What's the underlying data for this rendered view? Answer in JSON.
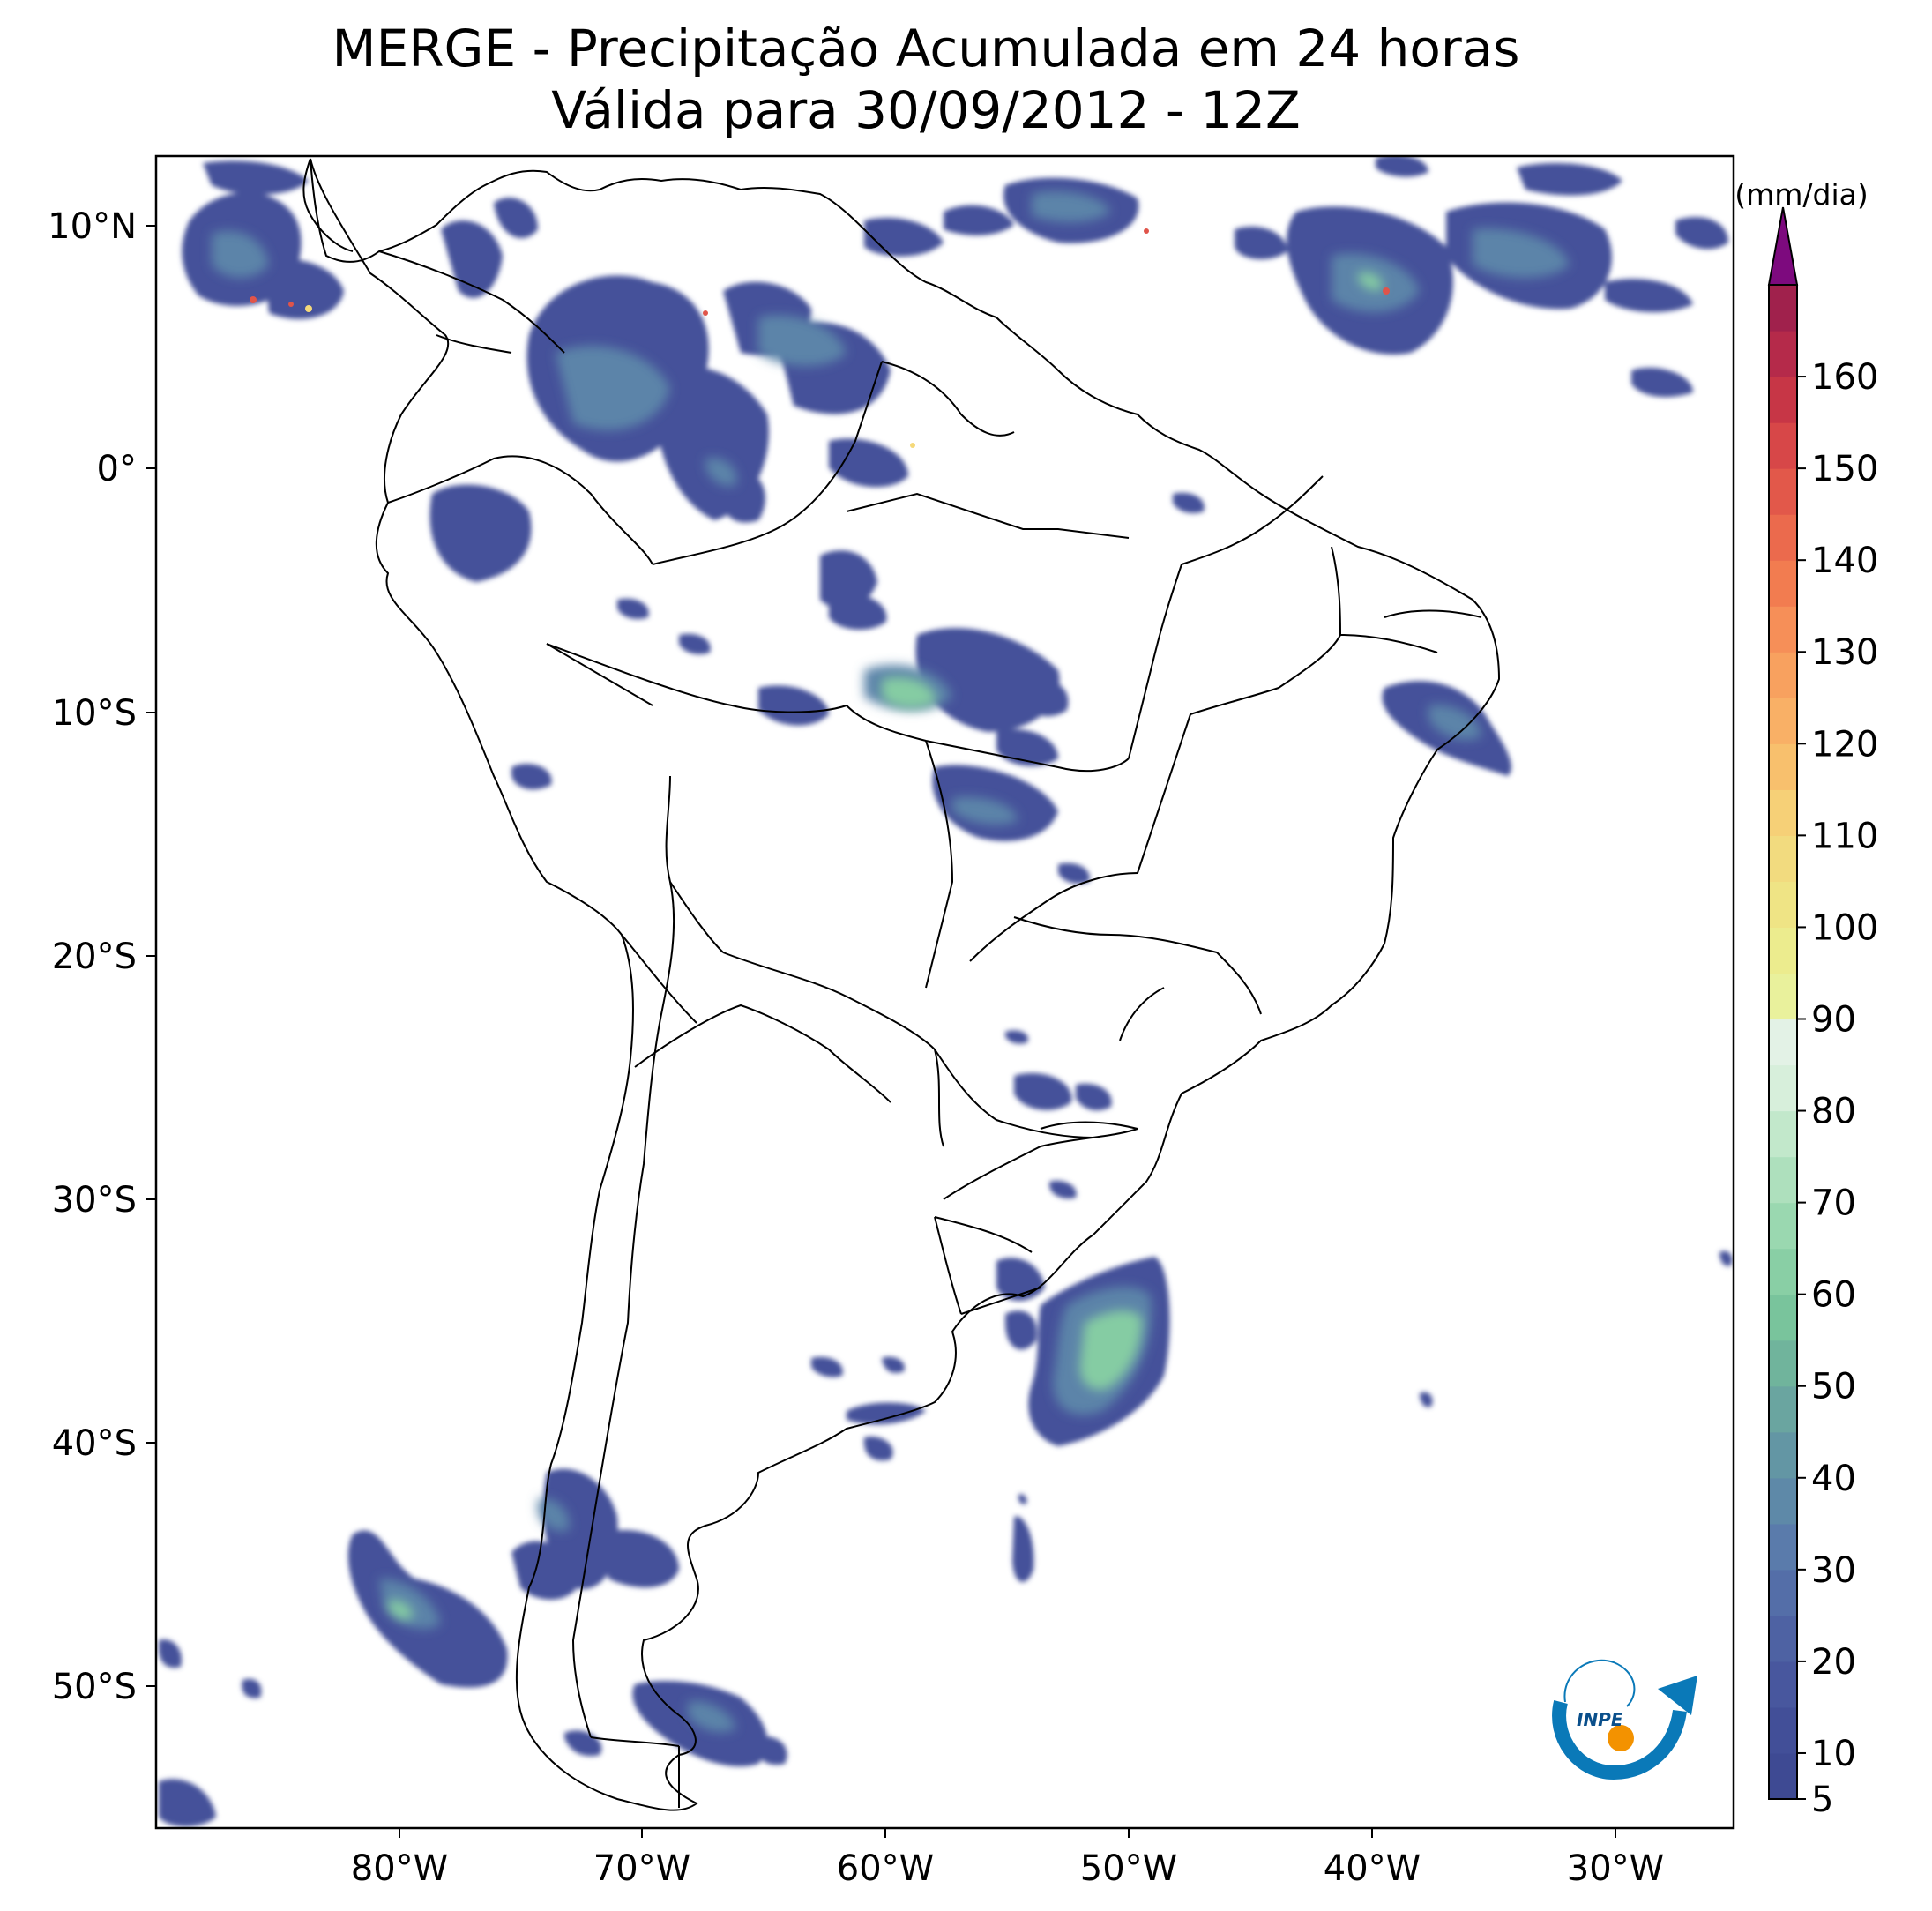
{
  "title": "MERGE - Precipitação Acumulada em 24 horas",
  "subtitle": "Válida para 30/09/2012 - 12Z",
  "map": {
    "lat_labels": [
      "10°N",
      "0°",
      "10°S",
      "20°S",
      "30°S",
      "40°S",
      "50°S"
    ],
    "lon_labels": [
      "80°W",
      "70°W",
      "60°W",
      "50°W",
      "40°W",
      "30°W"
    ],
    "lon_range": [
      -90,
      -25
    ],
    "lat_range": [
      -56,
      13
    ]
  },
  "colorbar": {
    "unit_label": "(mm/dia)",
    "tick_labels": [
      "5",
      "10",
      "20",
      "30",
      "40",
      "50",
      "60",
      "70",
      "80",
      "90",
      "100",
      "110",
      "120",
      "130",
      "140",
      "150",
      "160"
    ],
    "colors": [
      "#3e4a93",
      "#424f98",
      "#48579e",
      "#4e62a3",
      "#546ea8",
      "#5a7bab",
      "#5e89a8",
      "#6396a4",
      "#6aa5a0",
      "#70b49c",
      "#79c49c",
      "#89cfa5",
      "#9ad8b0",
      "#aee0bd",
      "#c2e8cb",
      "#d7efdb",
      "#e3f2e6",
      "#e9f19c",
      "#ecec8e",
      "#efe485",
      "#f2db7f",
      "#f6d077",
      "#f8c06d",
      "#f9b066",
      "#f8a15f",
      "#f68f58",
      "#f27c50",
      "#eb6a4d",
      "#e2584a",
      "#d74748",
      "#c73646",
      "#b52a4a",
      "#a0214c"
    ],
    "extend_color": "#7d0a7e"
  },
  "logo": {
    "text": "INPE"
  }
}
